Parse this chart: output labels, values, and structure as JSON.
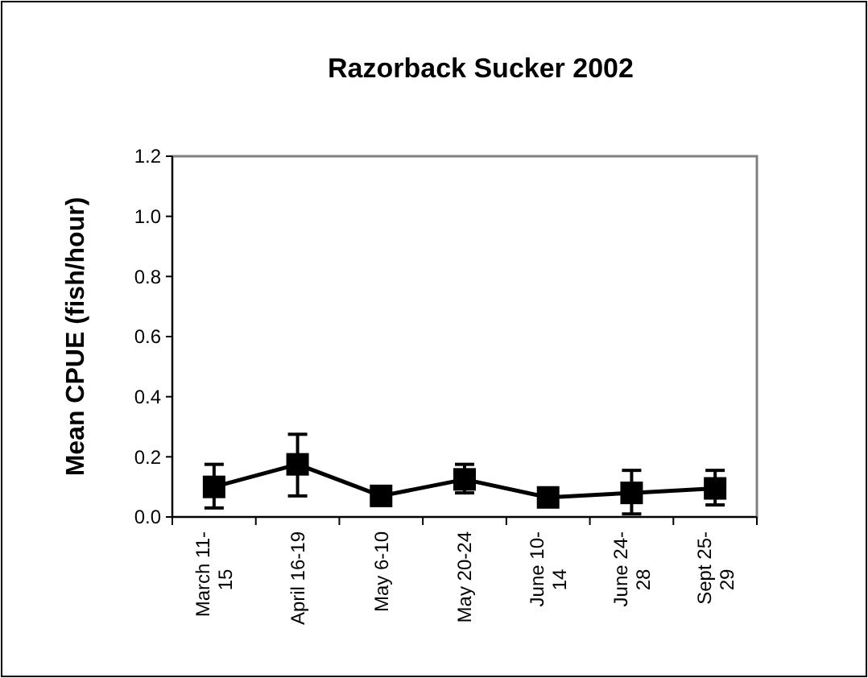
{
  "chart_data": {
    "type": "line",
    "title": "Razorback Sucker 2002",
    "ylabel": "Mean CPUE (fish/hour)",
    "categories": [
      "March 11-\n15",
      "April 16-19",
      "May 6-10",
      "May 20-24",
      "June 10-\n14",
      "June 24-\n28",
      "Sept 25-\n29"
    ],
    "series": [
      {
        "color": "#000000",
        "values": [
          0.1,
          0.175,
          0.07,
          0.125,
          0.065,
          0.08,
          0.095
        ],
        "errors": [
          [
            0.03,
            0.175
          ],
          [
            0.07,
            0.275
          ],
          null,
          [
            0.08,
            0.175
          ],
          null,
          [
            0.01,
            0.155
          ],
          [
            0.04,
            0.155
          ]
        ]
      }
    ],
    "ylim": [
      0,
      1.2
    ],
    "yticks": [
      {
        "value": 0,
        "label": "0.0"
      },
      {
        "value": 0.2,
        "label": "0.2"
      },
      {
        "value": 0.4,
        "label": "0.4"
      },
      {
        "value": 0.6,
        "label": "0.6"
      },
      {
        "value": 0.8,
        "label": "0.8"
      },
      {
        "value": 1,
        "label": "1.0"
      },
      {
        "value": 1.2,
        "label": "1.2"
      }
    ],
    "marker": "square",
    "line_style": "solid",
    "grid": false
  }
}
